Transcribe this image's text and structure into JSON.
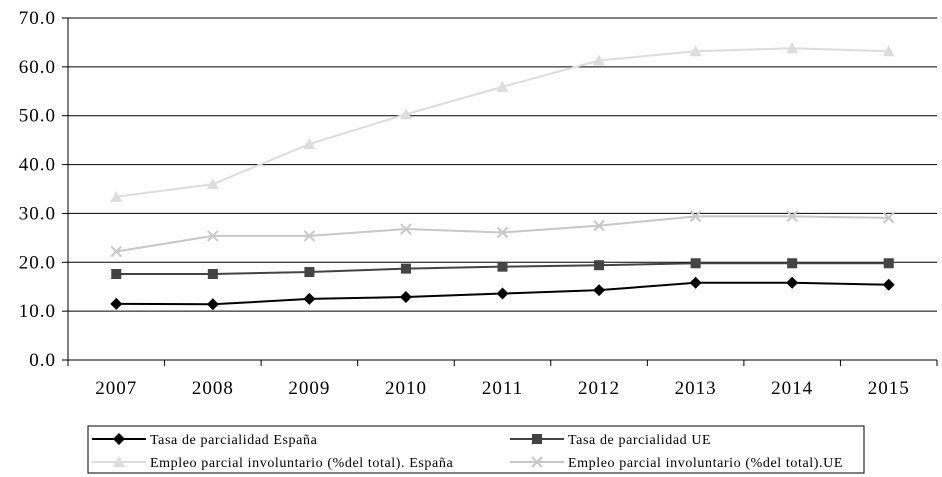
{
  "chart_data": {
    "type": "line",
    "title": "",
    "xlabel": "",
    "ylabel": "",
    "x": [
      "2007",
      "2008",
      "2009",
      "2010",
      "2011",
      "2012",
      "2013",
      "2014",
      "2015"
    ],
    "ylim": [
      0,
      70
    ],
    "yticks": [
      "0.0",
      "10.0",
      "20.0",
      "30.0",
      "40.0",
      "50.0",
      "60.0",
      "70.0"
    ],
    "grid": "horizontal",
    "legend_position": "bottom",
    "series": [
      {
        "name": "Tasa de parcialidad España",
        "values": [
          11.5,
          11.4,
          12.5,
          12.9,
          13.6,
          14.3,
          15.8,
          15.8,
          15.4
        ],
        "color": "#000000",
        "marker": "diamond"
      },
      {
        "name": "Tasa de parcialidad UE",
        "values": [
          17.6,
          17.6,
          18.0,
          18.7,
          19.1,
          19.4,
          19.8,
          19.8,
          19.8
        ],
        "color": "#444444",
        "marker": "square"
      },
      {
        "name": "Empleo parcial involuntario (%del total). España",
        "values": [
          33.4,
          36.0,
          44.2,
          50.3,
          55.9,
          61.3,
          63.2,
          63.8,
          63.2
        ],
        "color": "#dddddd",
        "marker": "triangle"
      },
      {
        "name": "Empleo parcial involuntario (%del total).UE",
        "values": [
          22.2,
          25.4,
          25.4,
          26.8,
          26.1,
          27.5,
          29.4,
          29.4,
          29.1
        ],
        "color": "#c8c8c8",
        "marker": "cross"
      }
    ]
  }
}
